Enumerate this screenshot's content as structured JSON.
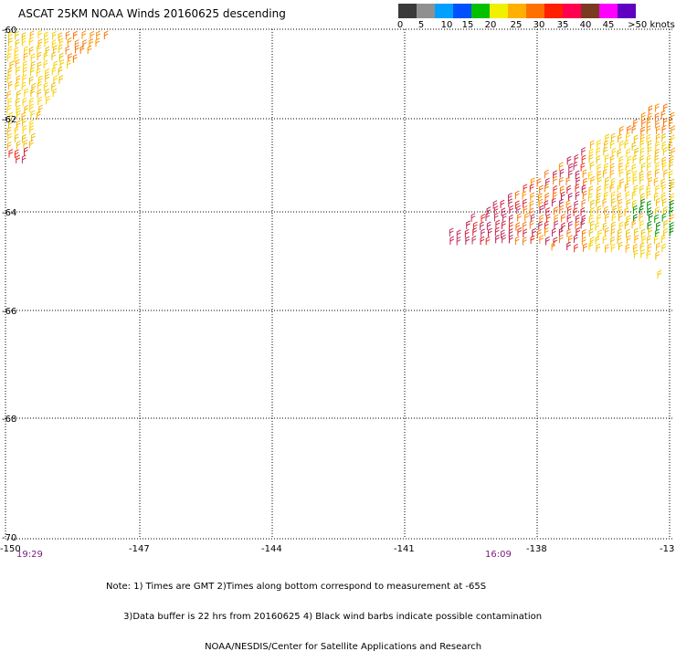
{
  "title": "ASCAT 25KM NOAA Winds 20160625 descending",
  "colorbar": {
    "colors": [
      "#3a3a3a",
      "#909090",
      "#00a0ff",
      "#0050ff",
      "#00c000",
      "#f0f000",
      "#ffb000",
      "#ff7000",
      "#ff2000",
      "#ff0050",
      "#7a3a20",
      "#ff00ff",
      "#6000c0"
    ],
    "labels": [
      "0",
      "5",
      "10",
      "15",
      "20",
      "25",
      "30",
      "35",
      "40",
      "45",
      ">50 knots"
    ]
  },
  "axes": {
    "lat_labels": [
      "-60",
      "-62",
      "-64",
      "-66",
      "-68",
      "-70"
    ],
    "lon_labels": [
      "-150",
      "-147",
      "-144",
      "-141",
      "-138",
      "-13"
    ],
    "time_labels": [
      "19:29",
      "16:09"
    ]
  },
  "notes": [
    "Note: 1) Times are GMT 2)Times along bottom correspond to measurement at -65S",
    "      3)Data buffer is 22 hrs from 20160625 4) Black wind barbs indicate possible contamination",
    "                                  NOAA/NESDIS/Center for Satellite Applications and Research"
  ]
}
